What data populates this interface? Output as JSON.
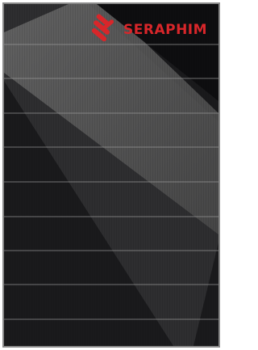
{
  "logo": {
    "text": "SERAPHIM"
  }
}
